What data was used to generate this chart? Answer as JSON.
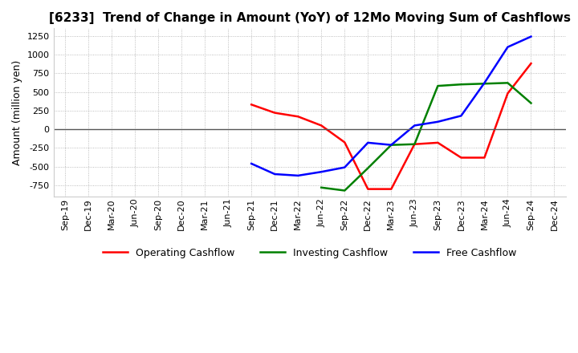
{
  "title": "[6233]  Trend of Change in Amount (YoY) of 12Mo Moving Sum of Cashflows",
  "ylabel": "Amount (million yen)",
  "x_labels": [
    "Sep-19",
    "Dec-19",
    "Mar-20",
    "Jun-20",
    "Sep-20",
    "Dec-20",
    "Mar-21",
    "Jun-21",
    "Sep-21",
    "Dec-21",
    "Mar-22",
    "Jun-22",
    "Sep-22",
    "Dec-22",
    "Mar-23",
    "Jun-23",
    "Sep-23",
    "Dec-23",
    "Mar-24",
    "Jun-24",
    "Sep-24",
    "Dec-24"
  ],
  "operating": [
    null,
    null,
    null,
    null,
    null,
    null,
    null,
    null,
    330,
    220,
    170,
    50,
    -175,
    -800,
    -800,
    -200,
    -180,
    -380,
    -380,
    480,
    880,
    null
  ],
  "investing": [
    null,
    null,
    null,
    null,
    null,
    null,
    null,
    null,
    null,
    null,
    null,
    -780,
    -820,
    -520,
    -210,
    -200,
    580,
    600,
    610,
    620,
    350,
    null
  ],
  "free": [
    null,
    null,
    null,
    null,
    null,
    null,
    null,
    null,
    -460,
    -600,
    -620,
    -570,
    -510,
    -180,
    -210,
    50,
    100,
    180,
    620,
    1100,
    1240,
    null
  ],
  "ylim": [
    -900,
    1350
  ],
  "yticks": [
    -750,
    -500,
    -250,
    0,
    250,
    500,
    750,
    1000,
    1250
  ],
  "operating_color": "#ff0000",
  "investing_color": "#008000",
  "free_color": "#0000ff",
  "bg_color": "#ffffff",
  "plot_bg_color": "#ffffff",
  "grid_color": "#aaaaaa",
  "title_fontsize": 11,
  "label_fontsize": 9,
  "tick_fontsize": 8
}
